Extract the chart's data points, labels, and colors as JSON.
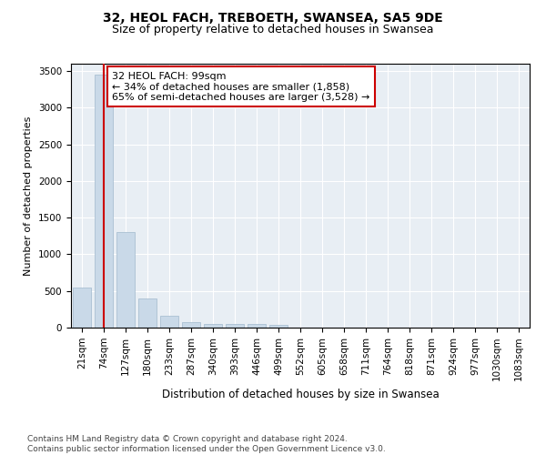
{
  "title": "32, HEOL FACH, TREBOETH, SWANSEA, SA5 9DE",
  "subtitle": "Size of property relative to detached houses in Swansea",
  "xlabel": "Distribution of detached houses by size in Swansea",
  "ylabel": "Number of detached properties",
  "categories": [
    "21sqm",
    "74sqm",
    "127sqm",
    "180sqm",
    "233sqm",
    "287sqm",
    "340sqm",
    "393sqm",
    "446sqm",
    "499sqm",
    "552sqm",
    "605sqm",
    "658sqm",
    "711sqm",
    "764sqm",
    "818sqm",
    "871sqm",
    "924sqm",
    "977sqm",
    "1030sqm",
    "1083sqm"
  ],
  "values": [
    550,
    3450,
    1300,
    400,
    160,
    80,
    55,
    50,
    45,
    40,
    0,
    0,
    0,
    0,
    0,
    0,
    0,
    0,
    0,
    0,
    0
  ],
  "bar_color": "#c9d9e8",
  "bar_edge_color": "#a0b8cc",
  "vline_x": 1,
  "vline_color": "#cc0000",
  "annotation_text": "32 HEOL FACH: 99sqm\n← 34% of detached houses are smaller (1,858)\n65% of semi-detached houses are larger (3,528) →",
  "annotation_box_color": "#ffffff",
  "annotation_box_edge": "#cc0000",
  "ylim": [
    0,
    3600
  ],
  "yticks": [
    0,
    500,
    1000,
    1500,
    2000,
    2500,
    3000,
    3500
  ],
  "plot_bg_color": "#e8eef4",
  "footer_text": "Contains HM Land Registry data © Crown copyright and database right 2024.\nContains public sector information licensed under the Open Government Licence v3.0.",
  "title_fontsize": 10,
  "subtitle_fontsize": 9,
  "xlabel_fontsize": 8.5,
  "ylabel_fontsize": 8,
  "tick_fontsize": 7.5,
  "annotation_fontsize": 8,
  "footer_fontsize": 6.5
}
